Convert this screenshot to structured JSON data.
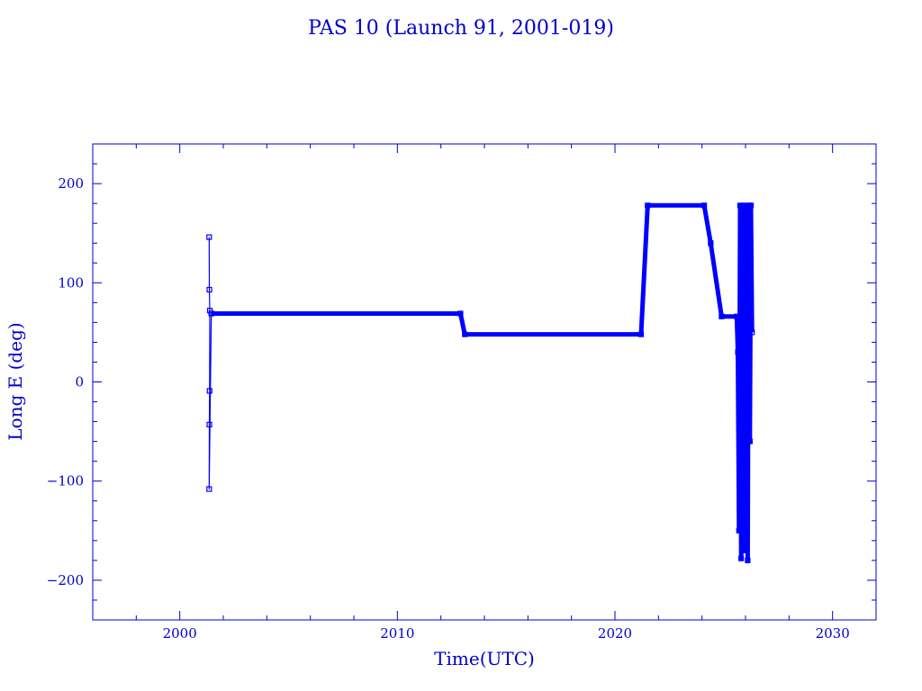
{
  "chart_data": {
    "type": "line",
    "title": "PAS 10 (Launch 91, 2001-019)",
    "xlabel": "Time(UTC)",
    "ylabel": "Long E (deg)",
    "xlim": [
      1996,
      2032
    ],
    "ylim": [
      -240,
      240
    ],
    "xticks": [
      2000,
      2010,
      2020,
      2030
    ],
    "xtick_labels": [
      "2000",
      "2010",
      "2020",
      "2030"
    ],
    "yticks": [
      200,
      100,
      0,
      -100,
      -200
    ],
    "ytick_labels": [
      "200",
      "100",
      "0",
      "−100",
      "−200"
    ],
    "grid": false,
    "legend": "none",
    "color": "#0000ff",
    "series": [
      {
        "markers": "square",
        "x": [
          2001.35,
          2001.36,
          2001.38,
          2001.37,
          2001.36,
          2001.35,
          2001.45
        ],
        "y": [
          146,
          93,
          72,
          -9,
          -43,
          -108,
          69
        ]
      },
      {
        "markers": "square",
        "x": [
          2001.45,
          2012.9,
          2013.1,
          2021.2,
          2021.5,
          2024.1,
          2024.4,
          2024.9,
          2025.6,
          2025.65,
          2025.7,
          2025.75,
          2025.8,
          2025.85,
          2025.9,
          2025.95,
          2026.0,
          2026.05,
          2026.1,
          2026.15,
          2026.2,
          2026.25,
          2026.3
        ],
        "y": [
          69,
          69,
          48,
          48,
          178,
          178,
          140,
          66,
          66,
          30,
          -150,
          178,
          -178,
          160,
          -90,
          178,
          -170,
          120,
          -180,
          178,
          -60,
          178,
          50
        ]
      }
    ]
  }
}
